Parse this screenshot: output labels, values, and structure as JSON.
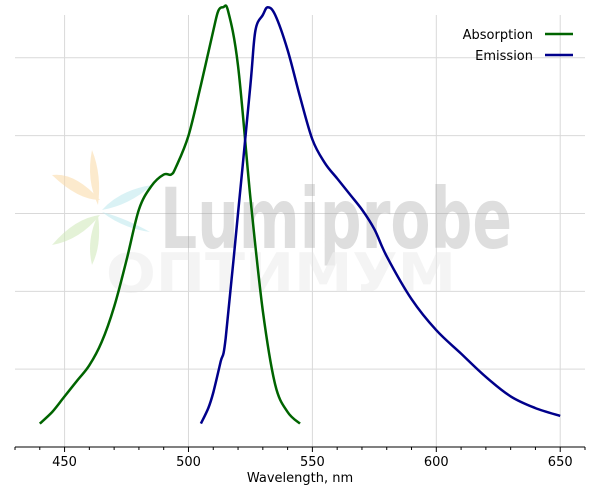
{
  "chart_data": {
    "type": "line",
    "title": "",
    "xlabel": "Wavelength, nm",
    "ylabel": "",
    "xlim": [
      430,
      660
    ],
    "ylim": [
      0,
      1.11
    ],
    "xticks": [
      450,
      500,
      550,
      600,
      650
    ],
    "y_grid_values": [
      0.2,
      0.4,
      0.6,
      0.8,
      1.0
    ],
    "grid": true,
    "legend_position": "top-right",
    "series": [
      {
        "name": "Absorption",
        "color": "#006400",
        "x": [
          440,
          445,
          450,
          455,
          460,
          465,
          470,
          475,
          480,
          485,
          490,
          493,
          495,
          500,
          505,
          510,
          512,
          514,
          516,
          520,
          525,
          530,
          535,
          540,
          545
        ],
        "y": [
          0.06,
          0.09,
          0.13,
          0.17,
          0.21,
          0.27,
          0.36,
          0.48,
          0.61,
          0.67,
          0.7,
          0.7,
          0.72,
          0.8,
          0.93,
          1.07,
          1.12,
          1.13,
          1.12,
          0.98,
          0.64,
          0.35,
          0.16,
          0.09,
          0.06
        ]
      },
      {
        "name": "Emission",
        "color": "#00008B",
        "x": [
          505,
          508,
          510,
          513,
          515,
          520,
          525,
          527,
          530,
          532,
          535,
          540,
          545,
          550,
          555,
          560,
          565,
          570,
          575,
          580,
          590,
          600,
          610,
          620,
          630,
          640,
          650
        ],
        "y": [
          0.06,
          0.1,
          0.14,
          0.22,
          0.28,
          0.6,
          0.93,
          1.07,
          1.11,
          1.13,
          1.11,
          1.02,
          0.9,
          0.79,
          0.73,
          0.69,
          0.65,
          0.61,
          0.56,
          0.49,
          0.38,
          0.3,
          0.24,
          0.18,
          0.13,
          0.1,
          0.08
        ]
      }
    ],
    "watermark": {
      "text_main": "Lumiprobe",
      "text_sub": "ОПТИМУМ"
    }
  }
}
